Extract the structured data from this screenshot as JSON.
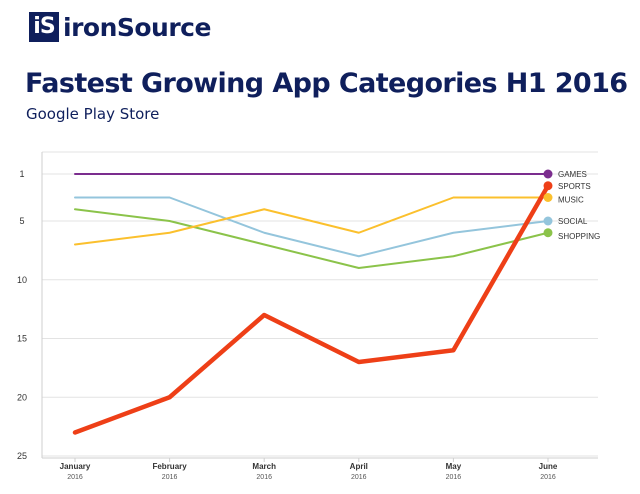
{
  "brand": {
    "mark": "iS",
    "name": "ironSource"
  },
  "chart_data": {
    "type": "line",
    "title": "Fastest Growing App Categories H1  2016",
    "subtitle": "Google Play Store",
    "categories": [
      "January",
      "February",
      "March",
      "April",
      "May",
      "June"
    ],
    "category_sublabels": [
      "2016",
      "2016",
      "2016",
      "2016",
      "2016",
      "2016"
    ],
    "y_ticks": [
      1,
      5,
      10,
      15,
      20,
      25
    ],
    "ylim": [
      1,
      25
    ],
    "y_reversed": true,
    "grid": true,
    "legend_placement": "right, next to line ends",
    "series": [
      {
        "name": "GAMES",
        "color": "#7b2d8e",
        "values": [
          1,
          1,
          1,
          1,
          1,
          1
        ]
      },
      {
        "name": "SPORTS",
        "color": "#ee3f17",
        "values": [
          23,
          20,
          13,
          17,
          16,
          2
        ]
      },
      {
        "name": "MUSIC",
        "color": "#fbc02d",
        "values": [
          7,
          6,
          4,
          6,
          3,
          3
        ]
      },
      {
        "name": "SOCIAL",
        "color": "#94c5dc",
        "values": [
          3,
          3,
          6,
          8,
          6,
          5
        ]
      },
      {
        "name": "SHOPPING",
        "color": "#8bc34a",
        "values": [
          4,
          5,
          7,
          9,
          8,
          6
        ]
      }
    ]
  }
}
